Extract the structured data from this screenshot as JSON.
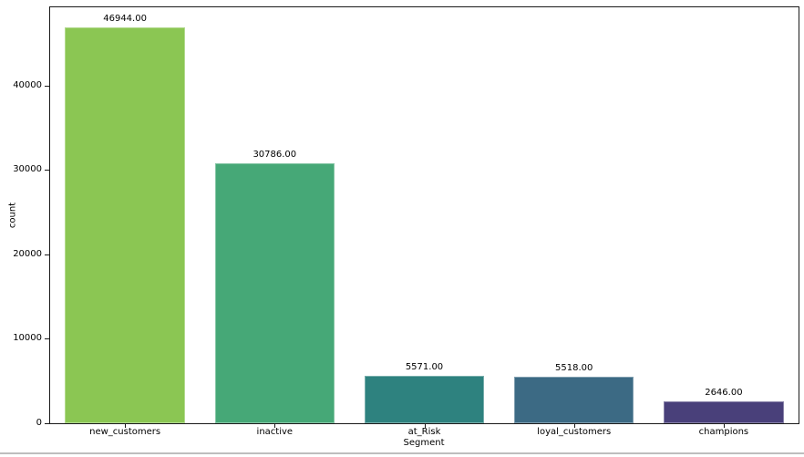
{
  "figure": {
    "background": "#ffffff",
    "separator_color": "#bdbdbd",
    "axis_color": "#1a1a1a",
    "text_color": "#000000"
  },
  "chart_data": {
    "type": "bar",
    "title": "",
    "xlabel": "Segment",
    "ylabel": "count",
    "categories": [
      "new_customers",
      "inactive",
      "at_Risk",
      "loyal_customers",
      "champions"
    ],
    "values": [
      46944,
      30786,
      5571,
      5518,
      2646
    ],
    "value_labels": [
      "46944.00",
      "30786.00",
      "5571.00",
      "5518.00",
      "2646.00"
    ],
    "bar_colors": [
      "#8bc653",
      "#46a877",
      "#2e827f",
      "#3c6a84",
      "#49407a"
    ],
    "bar_edge_color": "rgba(255,255,255,0.35)",
    "ylim": [
      0,
      49290
    ],
    "yticks": [
      0,
      10000,
      20000,
      30000,
      40000
    ],
    "ytick_labels": [
      "0",
      "10000",
      "20000",
      "30000",
      "40000"
    ],
    "grid": false,
    "legend_position": "none",
    "bar_width_fraction": 0.8
  }
}
